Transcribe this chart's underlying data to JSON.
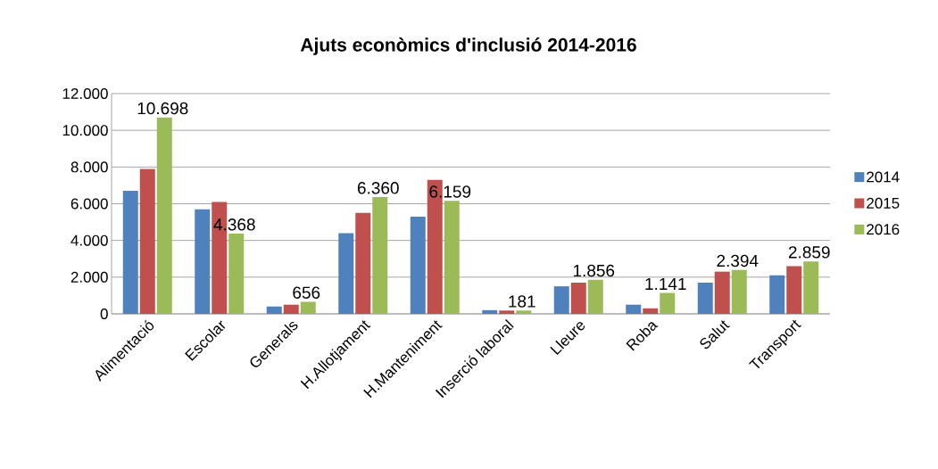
{
  "chart_data": {
    "type": "bar",
    "title": "Ajuts econòmics d'inclusió 2014-2016",
    "categories": [
      "Alimentació",
      "Escolar",
      "Generals",
      "H.Allotjament",
      "H.Manteniment",
      "Inserció laboral",
      "Lleure",
      "Roba",
      "Salut",
      "Transport"
    ],
    "series": [
      {
        "name": "2014",
        "color": "#4f81bd",
        "values": [
          6700,
          5700,
          400,
          4400,
          5300,
          200,
          1500,
          500,
          1700,
          2100
        ]
      },
      {
        "name": "2015",
        "color": "#c0504d",
        "values": [
          7900,
          6100,
          500,
          5500,
          7300,
          180,
          1700,
          300,
          2300,
          2600
        ]
      },
      {
        "name": "2016",
        "color": "#9bbb59",
        "values": [
          10698,
          4368,
          656,
          6360,
          6159,
          181,
          1856,
          1141,
          2394,
          2859
        ],
        "value_labels": [
          "10.698",
          "4.368",
          "656",
          "6.360",
          "6.159",
          "181",
          "1.856",
          "1.141",
          "2.394",
          "2.859"
        ]
      }
    ],
    "ylim": [
      0,
      12000
    ],
    "yticks": [
      {
        "value": 0,
        "label": "0"
      },
      {
        "value": 2000,
        "label": "2.000"
      },
      {
        "value": 4000,
        "label": "4.000"
      },
      {
        "value": 6000,
        "label": "6.000"
      },
      {
        "value": 8000,
        "label": "8.000"
      },
      {
        "value": 10000,
        "label": "10.000"
      },
      {
        "value": 12000,
        "label": "12.000"
      }
    ],
    "grid": "y",
    "legend": "right"
  }
}
